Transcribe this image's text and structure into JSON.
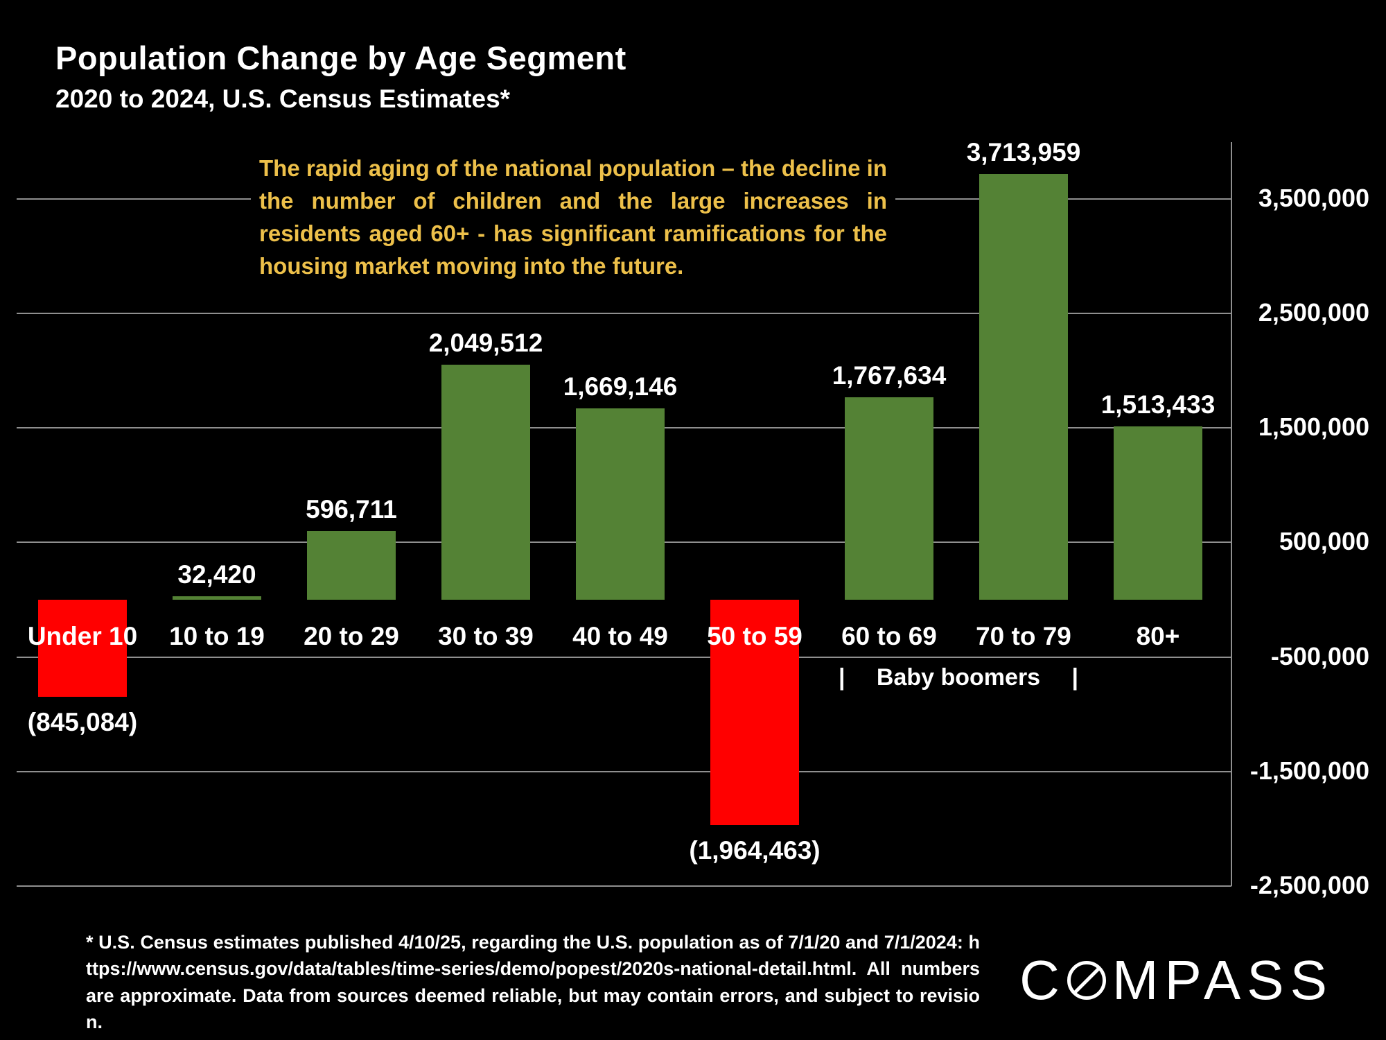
{
  "header": {
    "title": "Population Change by Age Segment",
    "subtitle": "2020 to 2024, U.S. Census Estimates*"
  },
  "annotation": {
    "text": "The rapid aging of the national population – the decline in the number of children and the large increases in residents aged 60+ - has significant ramifications for the housing market moving into the future.",
    "color": "#edc04a"
  },
  "boomers": {
    "left_pipe": "|",
    "label": "Baby boomers",
    "right_pipe": "|"
  },
  "footnote": {
    "text": "* U.S. Census estimates published 4/10/25, regarding the U.S. population as of 7/1/20 and 7/1/2024: https://www.census.gov/data/tables/time-series/demo/popest/2020s-national-detail.html. All numbers are approximate. Data from sources deemed reliable, but may contain errors, and subject to revision."
  },
  "logo": {
    "prefix": "C",
    "suffix": "MPASS"
  },
  "chart_data": {
    "type": "bar",
    "title": "Population Change by Age Segment",
    "subtitle": "2020 to 2024, U.S. Census Estimates*",
    "categories": [
      "Under 10",
      "10 to 19",
      "20 to 29",
      "30 to 39",
      "40 to 49",
      "50 to 59",
      "60 to 69",
      "70 to 79",
      "80+"
    ],
    "values": [
      -845084,
      32420,
      596711,
      2049512,
      1669146,
      -1964463,
      1767634,
      3713959,
      1513433
    ],
    "value_labels": [
      "(845,084)",
      "32,420",
      "596,711",
      "2,049,512",
      "1,669,146",
      "(1,964,463)",
      "1,767,634",
      "3,713,959",
      "1,513,433"
    ],
    "y_ticks": [
      3500000,
      2500000,
      1500000,
      500000,
      -500000,
      -1500000,
      -2500000
    ],
    "y_tick_labels": [
      "3,500,000",
      "2,500,000",
      "1,500,000",
      "500,000",
      "-500,000",
      "-1,500,000",
      "-2,500,000"
    ],
    "ylim": [
      -2500000,
      3900000
    ],
    "positive_color": "#548235",
    "negative_color": "#ff0000",
    "grid": true,
    "axis_position": "right",
    "group_annotation": "Baby boomers",
    "group_annotation_categories": [
      "60 to 69",
      "70 to 79"
    ]
  }
}
